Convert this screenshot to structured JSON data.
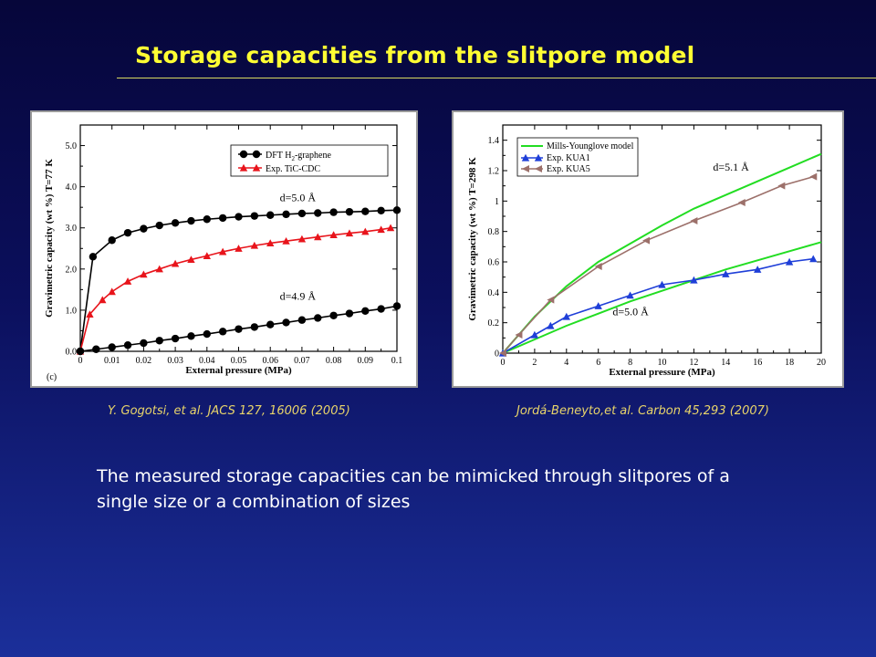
{
  "slide": {
    "title": "Storage capacities from the slitpore model",
    "body": "The measured storage capacities can be mimicked through slitpores of a single size or a combination of sizes",
    "citations": {
      "left": "Y. Gogotsi, et al. JACS 127, 16006 (2005)",
      "right": "Jordá-Beneyto,et al. Carbon 45,293 (2007)"
    }
  },
  "colors": {
    "title": "#ffff33",
    "citation": "#e8d46a",
    "dft": "#000000",
    "exp_tic": "#e8141b",
    "mills": "#22dd22",
    "kua1": "#1f3fd8",
    "kua5": "#9c706a"
  },
  "chart_data": [
    {
      "type": "line",
      "panel_label": "(c)",
      "xlabel": "External pressure (MPa)",
      "ylabel": "Gravimetric capacity (wt %) T=77 K",
      "xlim": [
        0,
        0.1
      ],
      "ylim": [
        0,
        5.5
      ],
      "xticks": [
        "0",
        "0.01",
        "0.02",
        "0.03",
        "0.04",
        "0.05",
        "0.06",
        "0.07",
        "0.08",
        "0.09",
        "0.1"
      ],
      "yticks": [
        "0.0",
        "1.0",
        "2.0",
        "3.0",
        "4.0",
        "5.0"
      ],
      "grid": false,
      "legend": "top-right",
      "annotations": [
        "d=5.0 Å",
        "d=4.9 Å"
      ],
      "series": [
        {
          "name": "DFT H2-graphene (d=5.0 Å)",
          "legend_label": "DFT H",
          "legend_sub": "2",
          "legend_suffix": "-graphene",
          "marker": "circle",
          "x": [
            0,
            0.004,
            0.01,
            0.015,
            0.02,
            0.025,
            0.03,
            0.035,
            0.04,
            0.045,
            0.05,
            0.055,
            0.06,
            0.065,
            0.07,
            0.075,
            0.08,
            0.085,
            0.09,
            0.095,
            0.1
          ],
          "y": [
            0,
            2.3,
            2.7,
            2.88,
            2.98,
            3.06,
            3.12,
            3.17,
            3.21,
            3.24,
            3.27,
            3.29,
            3.31,
            3.33,
            3.35,
            3.36,
            3.38,
            3.39,
            3.4,
            3.42,
            3.43
          ]
        },
        {
          "name": "Exp. TiC-CDC",
          "legend_label": "Exp. TiC-CDC",
          "marker": "triangle",
          "x": [
            0,
            0.003,
            0.007,
            0.01,
            0.015,
            0.02,
            0.025,
            0.03,
            0.035,
            0.04,
            0.045,
            0.05,
            0.055,
            0.06,
            0.065,
            0.07,
            0.075,
            0.08,
            0.085,
            0.09,
            0.095,
            0.098
          ],
          "y": [
            0,
            0.9,
            1.25,
            1.45,
            1.7,
            1.87,
            2.0,
            2.13,
            2.23,
            2.32,
            2.42,
            2.5,
            2.57,
            2.63,
            2.68,
            2.73,
            2.78,
            2.83,
            2.87,
            2.91,
            2.96,
            3.0
          ]
        },
        {
          "name": "DFT H2-graphene (d=4.9 Å)",
          "marker": "circle",
          "x": [
            0,
            0.005,
            0.01,
            0.015,
            0.02,
            0.025,
            0.03,
            0.035,
            0.04,
            0.045,
            0.05,
            0.055,
            0.06,
            0.065,
            0.07,
            0.075,
            0.08,
            0.085,
            0.09,
            0.095,
            0.1
          ],
          "y": [
            0,
            0.05,
            0.1,
            0.15,
            0.2,
            0.26,
            0.31,
            0.37,
            0.42,
            0.48,
            0.54,
            0.59,
            0.65,
            0.7,
            0.76,
            0.81,
            0.87,
            0.92,
            0.98,
            1.03,
            1.1
          ]
        }
      ]
    },
    {
      "type": "line",
      "xlabel": "External pressure (MPa)",
      "ylabel": "Gravimetric capacity (wt %) T=298 K",
      "xlim": [
        0,
        20
      ],
      "ylim": [
        0,
        1.5
      ],
      "xticks": [
        "0",
        "2",
        "4",
        "6",
        "8",
        "10",
        "12",
        "14",
        "16",
        "18",
        "20"
      ],
      "yticks": [
        "0",
        "0.2",
        "0.4",
        "0.6",
        "0.8",
        "1",
        "1.2",
        "1.4"
      ],
      "grid": false,
      "legend": "top-left",
      "annotations": [
        "d=5.1 Å",
        "d=5.0 Å"
      ],
      "series": [
        {
          "name": "Mills-Younglove model (d=5.1 Å)",
          "legend_label": "Mills-Younglove model",
          "marker": "none",
          "x": [
            0,
            2,
            4,
            6,
            8,
            10,
            12,
            14,
            16,
            18,
            20
          ],
          "y": [
            0,
            0.24,
            0.44,
            0.6,
            0.72,
            0.84,
            0.95,
            1.04,
            1.13,
            1.22,
            1.31
          ]
        },
        {
          "name": "Mills-Younglove model (d=5.0 Å)",
          "marker": "none",
          "x": [
            0,
            2,
            4,
            6,
            8,
            10,
            12,
            14,
            16,
            18,
            20
          ],
          "y": [
            0,
            0.09,
            0.18,
            0.26,
            0.34,
            0.41,
            0.48,
            0.55,
            0.61,
            0.67,
            0.73
          ]
        },
        {
          "name": "Exp. KUA1",
          "legend_label": "Exp. KUA1",
          "marker": "triangle-up",
          "x": [
            0,
            2,
            3,
            4,
            6,
            8,
            10,
            12,
            14,
            16,
            18,
            19.5
          ],
          "y": [
            0,
            0.12,
            0.18,
            0.24,
            0.31,
            0.38,
            0.45,
            0.48,
            0.52,
            0.55,
            0.6,
            0.62
          ]
        },
        {
          "name": "Exp. KUA5",
          "legend_label": "Exp. KUA5",
          "marker": "triangle-left",
          "x": [
            0,
            1,
            3,
            6,
            9,
            12,
            15,
            17.5,
            19.5
          ],
          "y": [
            0,
            0.12,
            0.35,
            0.57,
            0.74,
            0.87,
            0.99,
            1.1,
            1.16
          ]
        }
      ]
    }
  ]
}
